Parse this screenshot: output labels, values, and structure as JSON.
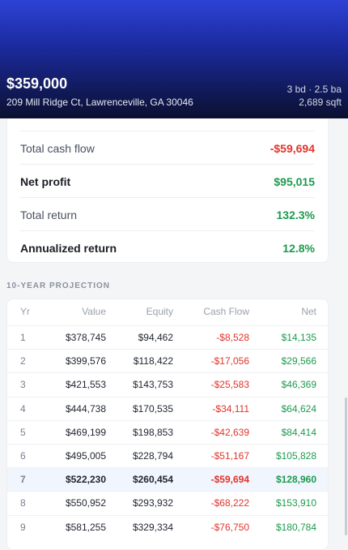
{
  "header": {
    "price": "$359,000",
    "address": "209 Mill Ridge Ct, Lawrenceville, GA 30046",
    "beds_baths": "3 bd · 2.5 ba",
    "sqft": "2,689 sqft"
  },
  "summary": {
    "rows": [
      {
        "label": "Total cash flow",
        "value": "-$59,694"
      },
      {
        "label": "Net profit",
        "value": "$95,015"
      },
      {
        "label": "Total return",
        "value": "132.3%"
      },
      {
        "label": "Annualized return",
        "value": "12.8%"
      }
    ]
  },
  "projection": {
    "title": "10-YEAR PROJECTION",
    "columns": [
      "Yr",
      "Value",
      "Equity",
      "Cash Flow",
      "Net"
    ],
    "rows": [
      [
        "1",
        "$378,745",
        "$94,462",
        "-$8,528",
        "$14,135"
      ],
      [
        "2",
        "$399,576",
        "$118,422",
        "-$17,056",
        "$29,566"
      ],
      [
        "3",
        "$421,553",
        "$143,753",
        "-$25,583",
        "$46,369"
      ],
      [
        "4",
        "$444,738",
        "$170,535",
        "-$34,111",
        "$64,624"
      ],
      [
        "5",
        "$469,199",
        "$198,853",
        "-$42,639",
        "$84,414"
      ],
      [
        "6",
        "$495,005",
        "$228,794",
        "-$51,167",
        "$105,828"
      ],
      [
        "7",
        "$522,230",
        "$260,454",
        "-$59,694",
        "$128,960"
      ],
      [
        "8",
        "$550,952",
        "$293,932",
        "-$68,222",
        "$153,910"
      ],
      [
        "9",
        "$581,255",
        "$329,334",
        "-$76,750",
        "$180,784"
      ]
    ]
  }
}
